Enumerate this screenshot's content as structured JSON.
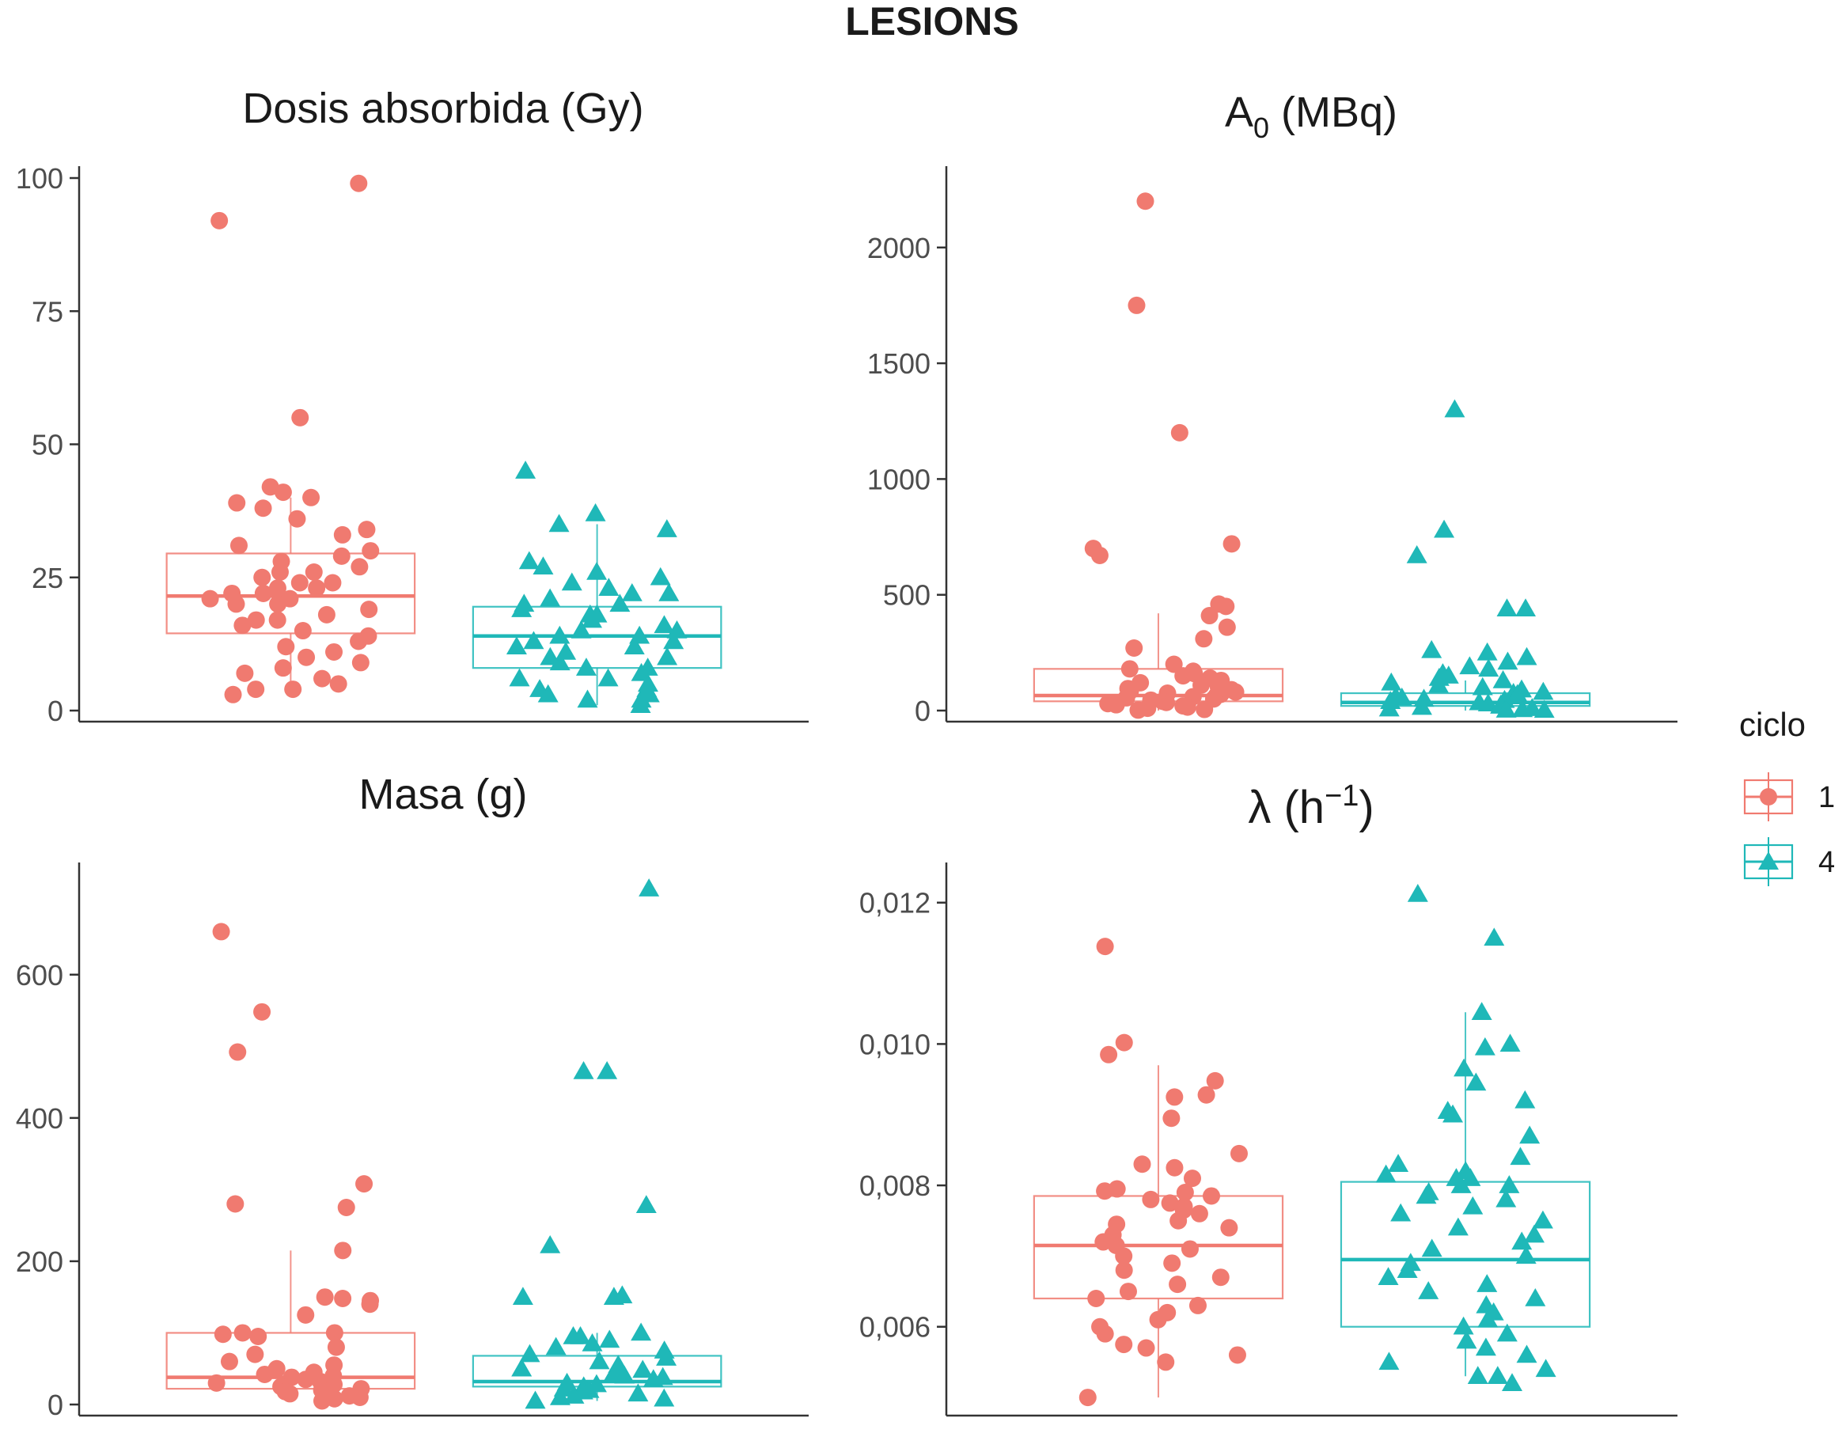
{
  "figure": {
    "title": "LESIONS",
    "legend": {
      "title": "ciclo",
      "position": "right",
      "items": [
        {
          "label": "1",
          "color": "#F07A70",
          "shape": "circle"
        },
        {
          "label": "4",
          "color": "#1FB8B8",
          "shape": "triangle"
        }
      ]
    }
  },
  "chart_data": [
    {
      "type": "boxplot",
      "title": "Dosis absorbida (Gy)",
      "ylim": [
        0,
        100
      ],
      "yticks": [
        0,
        25,
        50,
        75,
        100
      ],
      "ytick_labels": [
        "0",
        "25",
        "50",
        "75",
        "100"
      ],
      "grid": false,
      "series": [
        {
          "name": "1",
          "box": {
            "whisker_low": 3,
            "q1": 14.5,
            "median": 21.5,
            "q3": 29.5,
            "whisker_high": 40
          },
          "points": [
            99,
            92,
            55,
            42,
            41,
            40,
            39,
            38,
            36,
            34,
            33,
            31,
            30,
            29,
            28,
            27,
            26,
            26,
            25,
            24,
            24,
            23,
            23,
            22,
            22,
            21,
            21,
            20,
            20,
            19,
            18,
            17,
            17,
            16,
            15,
            14,
            13,
            12,
            11,
            10,
            9,
            8,
            7,
            6,
            5,
            4,
            4,
            3
          ]
        },
        {
          "name": "4",
          "box": {
            "whisker_low": 1,
            "q1": 8,
            "median": 14,
            "q3": 19.5,
            "whisker_high": 35
          },
          "points": [
            45,
            37,
            35,
            34,
            28,
            27,
            26,
            25,
            24,
            23,
            22,
            22,
            21,
            20,
            20,
            19,
            18,
            18,
            17,
            16,
            15,
            15,
            14,
            14,
            13,
            13,
            12,
            12,
            11,
            10,
            10,
            9,
            8,
            8,
            7,
            6,
            6,
            5,
            4,
            4,
            3,
            3,
            2,
            2,
            1
          ]
        }
      ]
    },
    {
      "type": "boxplot",
      "title_main": "A",
      "title_sub": "0",
      "title_rest": " (MBq)",
      "ylim": [
        0,
        2300
      ],
      "yticks": [
        0,
        500,
        1000,
        1500,
        2000
      ],
      "ytick_labels": [
        "0",
        "500",
        "1000",
        "1500",
        "2000"
      ],
      "grid": false,
      "series": [
        {
          "name": "1",
          "box": {
            "whisker_low": 0,
            "q1": 40,
            "median": 65,
            "q3": 180,
            "whisker_high": 420
          },
          "points": [
            2200,
            1750,
            1200,
            720,
            700,
            670,
            460,
            450,
            410,
            360,
            310,
            270,
            200,
            180,
            170,
            160,
            150,
            140,
            130,
            120,
            110,
            100,
            95,
            90,
            85,
            80,
            75,
            70,
            65,
            60,
            55,
            50,
            45,
            40,
            35,
            30,
            25,
            20,
            15,
            10,
            5,
            2
          ]
        },
        {
          "name": "4",
          "box": {
            "whisker_low": 0,
            "q1": 20,
            "median": 35,
            "q3": 75,
            "whisker_high": 130
          },
          "points": [
            1300,
            780,
            670,
            440,
            440,
            260,
            250,
            230,
            210,
            190,
            180,
            160,
            150,
            140,
            130,
            120,
            110,
            100,
            90,
            80,
            75,
            70,
            60,
            55,
            50,
            45,
            40,
            35,
            30,
            25,
            20,
            15,
            10,
            8,
            5,
            3,
            2
          ]
        }
      ]
    },
    {
      "type": "boxplot",
      "title": "Masa (g)",
      "ylim": [
        0,
        740
      ],
      "yticks": [
        0,
        200,
        400,
        600
      ],
      "ytick_labels": [
        "0",
        "200",
        "400",
        "600"
      ],
      "grid": false,
      "series": [
        {
          "name": "1",
          "box": {
            "whisker_low": 5,
            "q1": 22,
            "median": 38,
            "q3": 100,
            "whisker_high": 215
          },
          "points": [
            660,
            548,
            492,
            308,
            280,
            275,
            215,
            150,
            148,
            145,
            140,
            125,
            100,
            100,
            98,
            95,
            80,
            70,
            60,
            55,
            50,
            48,
            45,
            42,
            40,
            38,
            35,
            32,
            30,
            28,
            25,
            22,
            20,
            18,
            15,
            12,
            10,
            8,
            5
          ]
        },
        {
          "name": "4",
          "box": {
            "whisker_low": 5,
            "q1": 25,
            "median": 32,
            "q3": 68,
            "whisker_high": 100
          },
          "points": [
            720,
            465,
            465,
            278,
            222,
            152,
            150,
            150,
            100,
            95,
            95,
            90,
            85,
            80,
            75,
            70,
            65,
            60,
            55,
            50,
            48,
            45,
            40,
            38,
            35,
            30,
            28,
            25,
            22,
            20,
            18,
            15,
            12,
            10,
            8,
            5
          ]
        }
      ]
    },
    {
      "type": "boxplot",
      "title_main": "λ (h",
      "title_sup": "−1",
      "title_rest": ")",
      "ylim": [
        0.0049,
        0.0124
      ],
      "yticks": [
        0.006,
        0.008,
        0.01,
        0.012
      ],
      "ytick_labels": [
        "0,006",
        "0,008",
        "0,010",
        "0,012"
      ],
      "grid": false,
      "series": [
        {
          "name": "1",
          "box": {
            "whisker_low": 0.005,
            "q1": 0.0064,
            "median": 0.00715,
            "q3": 0.00785,
            "whisker_high": 0.0097
          },
          "points": [
            0.01138,
            0.01002,
            0.00985,
            0.00948,
            0.00928,
            0.00925,
            0.00895,
            0.00845,
            0.0083,
            0.00825,
            0.0081,
            0.00795,
            0.00792,
            0.0079,
            0.00785,
            0.0078,
            0.00775,
            0.0077,
            0.00765,
            0.0076,
            0.0075,
            0.00745,
            0.0074,
            0.0073,
            0.0072,
            0.00715,
            0.0071,
            0.007,
            0.0069,
            0.0068,
            0.0067,
            0.0066,
            0.0065,
            0.0064,
            0.0063,
            0.0062,
            0.0061,
            0.006,
            0.0059,
            0.00575,
            0.0057,
            0.0056,
            0.0055,
            0.005
          ]
        },
        {
          "name": "4",
          "box": {
            "whisker_low": 0.0053,
            "q1": 0.006,
            "median": 0.00695,
            "q3": 0.00805,
            "whisker_high": 0.01045
          },
          "points": [
            0.01212,
            0.0115,
            0.01045,
            0.01,
            0.00995,
            0.00965,
            0.00945,
            0.0092,
            0.00905,
            0.009,
            0.0087,
            0.0084,
            0.0083,
            0.0082,
            0.00815,
            0.0081,
            0.0081,
            0.008,
            0.008,
            0.0079,
            0.00785,
            0.0078,
            0.0077,
            0.0076,
            0.0075,
            0.0074,
            0.0073,
            0.0072,
            0.0071,
            0.007,
            0.0069,
            0.0068,
            0.0067,
            0.0066,
            0.0065,
            0.0064,
            0.0063,
            0.0062,
            0.0061,
            0.006,
            0.0059,
            0.0058,
            0.0057,
            0.0056,
            0.0055,
            0.0054,
            0.0053,
            0.0053,
            0.0052
          ]
        }
      ]
    }
  ]
}
